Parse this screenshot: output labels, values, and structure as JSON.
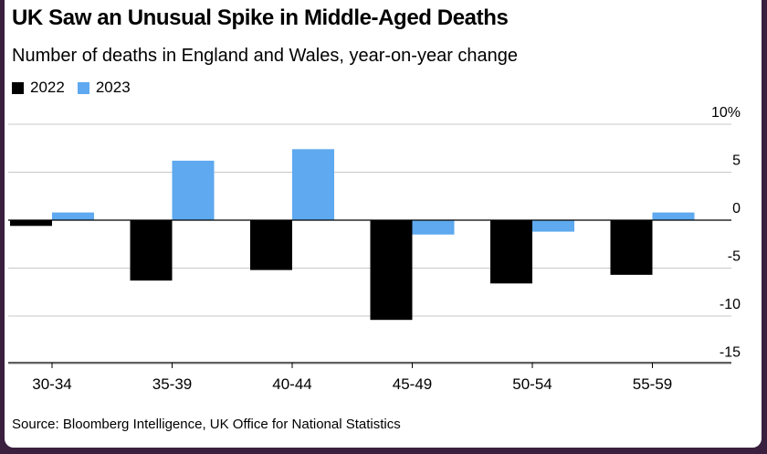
{
  "header": {
    "title": "UK Saw an Unusual Spike in Middle-Aged Deaths",
    "subtitle": "Number of deaths in England and Wales, year-on-year change"
  },
  "legend": [
    {
      "label": "2022",
      "color": "#000000"
    },
    {
      "label": "2023",
      "color": "#5ea9ef"
    }
  ],
  "footer": {
    "source": "Source: Bloomberg Intelligence, UK Office for National Statistics"
  },
  "chart_data": {
    "type": "bar",
    "categories": [
      "30-34",
      "35-39",
      "40-44",
      "45-49",
      "50-54",
      "55-59"
    ],
    "series": [
      {
        "name": "2022",
        "color": "#000000",
        "values": [
          -0.6,
          -6.3,
          -5.2,
          -10.4,
          -6.6,
          -5.7
        ]
      },
      {
        "name": "2023",
        "color": "#5ea9ef",
        "values": [
          0.8,
          6.2,
          7.4,
          -1.5,
          -1.2,
          0.8
        ]
      }
    ],
    "y_ticks": [
      {
        "value": 10,
        "label": "10%"
      },
      {
        "value": 5,
        "label": "5"
      },
      {
        "value": 0,
        "label": "0"
      },
      {
        "value": -5,
        "label": "-5"
      },
      {
        "value": -10,
        "label": "-10"
      },
      {
        "value": -15,
        "label": "-15"
      }
    ],
    "ylim": [
      -15,
      10
    ],
    "grid": true
  }
}
